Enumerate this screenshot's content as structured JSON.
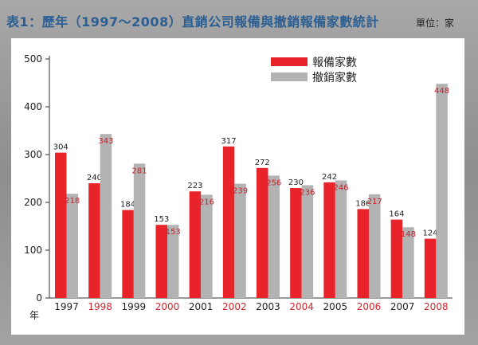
{
  "page": {
    "title": "表1：歷年（1997～2008）直銷公司報備與撤銷報備家數統計",
    "unit": "單位：家"
  },
  "colors": {
    "registered": "#e8232a",
    "revoked": "#b3b3b3",
    "title": "#2b5e92",
    "highlight_year": "#d8242a",
    "normal_year": "#222222"
  },
  "chart_data": {
    "type": "bar",
    "categories": [
      "1997",
      "1998",
      "1999",
      "2000",
      "2001",
      "2002",
      "2003",
      "2004",
      "2005",
      "2006",
      "2007",
      "2008"
    ],
    "highlighted_categories": [
      "1998",
      "2000",
      "2002",
      "2004",
      "2006",
      "2008"
    ],
    "series": [
      {
        "name": "報備家數",
        "values": [
          304,
          240,
          184,
          153,
          223,
          317,
          272,
          230,
          242,
          186,
          164,
          124
        ]
      },
      {
        "name": "撤銷家數",
        "values": [
          218,
          343,
          281,
          153,
          216,
          239,
          256,
          236,
          246,
          217,
          148,
          448
        ]
      }
    ],
    "ylim": [
      0,
      500
    ],
    "yticks": [
      0,
      100,
      200,
      300,
      400,
      500
    ],
    "xlabel": "年",
    "ylabel": "",
    "legend_position": "top-right",
    "grid": false
  }
}
